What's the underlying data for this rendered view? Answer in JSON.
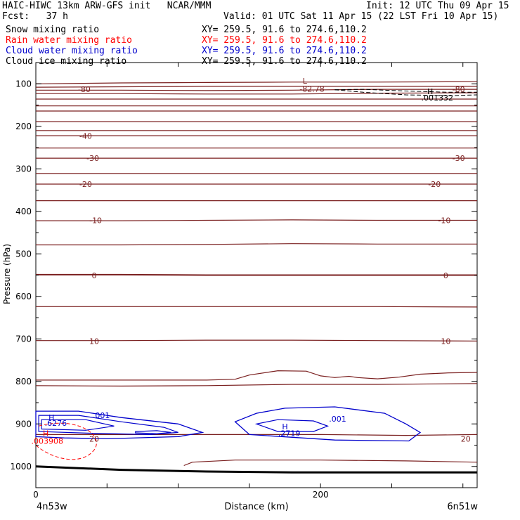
{
  "header": {
    "line1_left": "HAIC-HIWC 13km ARW-GFS init   NCAR/MMM",
    "line1_right": "Init: 12 UTC Thu 09 Apr 15",
    "fcst": "Fcst:   37 h",
    "valid": "Valid: 01 UTC Sat 11 Apr 15 (22 LST Fri 10 Apr 15)"
  },
  "fields": [
    {
      "name": "Snow mixing ratio",
      "xy": "XY= 259.5, 91.6 to 274.6,110.2",
      "color": "#000000"
    },
    {
      "name": "Rain water mixing ratio",
      "xy": "XY= 259.5, 91.6 to 274.6,110.2",
      "color": "#ff0000"
    },
    {
      "name": "Cloud water mixing ratio",
      "xy": "XY= 259.5, 91.6 to 274.6,110.2",
      "color": "#0000cc"
    },
    {
      "name": "Cloud ice mixing ratio",
      "xy": "XY= 259.5, 91.6 to 274.6,110.2",
      "color": "#000000"
    }
  ],
  "colors": {
    "temperature": "#7a1f1f",
    "cloud_water": "#0000cc",
    "rain_water": "#ff0000",
    "axes": "#000000"
  },
  "chart_data": {
    "type": "line",
    "ylabel": "Pressure (hPa)",
    "xlabel": "Distance (km)",
    "x_ticks": [
      "0",
      "200"
    ],
    "y_ticks": [
      "100",
      "200",
      "300",
      "400",
      "500",
      "600",
      "700",
      "800",
      "900",
      "1000"
    ],
    "endpoint_left": "4n53w",
    "endpoint_right": "6n51w",
    "xlim": [
      0,
      310
    ],
    "ylim": [
      50,
      1050
    ],
    "temperature_isotherms": [
      {
        "y": [
          100,
          98,
          97,
          96,
          96,
          95
        ],
        "label": null
      },
      {
        "y": [
          108,
          107,
          106,
          106,
          106,
          106
        ],
        "label": null
      },
      {
        "y": [
          115,
          115,
          116,
          115,
          113,
          113
        ],
        "label": "-80"
      },
      {
        "y": [
          123,
          123,
          124,
          124,
          122,
          121
        ],
        "label": null
      },
      {
        "y": [
          136,
          136,
          136,
          136,
          136,
          136
        ],
        "label": null
      },
      {
        "y": [
          152,
          152,
          152,
          152,
          152,
          152
        ],
        "label": null
      },
      {
        "y": [
          164,
          164,
          164,
          164,
          164,
          164
        ],
        "label": null
      },
      {
        "y": [
          189,
          189,
          189,
          189,
          189,
          189
        ],
        "label": null
      },
      {
        "y": [
          210,
          210,
          210,
          210,
          210,
          210
        ],
        "label": null
      },
      {
        "y": [
          222,
          222,
          222,
          222,
          222,
          222
        ],
        "label": "-40"
      },
      {
        "y": [
          251,
          251,
          251,
          251,
          251,
          251
        ],
        "label": null
      },
      {
        "y": [
          275,
          275,
          275,
          275,
          275,
          275
        ],
        "label": "-30"
      },
      {
        "y": [
          311,
          311,
          311,
          311,
          311,
          311
        ],
        "label": null
      },
      {
        "y": [
          336,
          336,
          336,
          336,
          336,
          336
        ],
        "label": "-20"
      },
      {
        "y": [
          375,
          375,
          375,
          375,
          375,
          375
        ],
        "label": null
      },
      {
        "y": [
          422,
          422,
          421,
          420,
          421,
          421
        ],
        "label": "-10"
      },
      {
        "y": [
          479,
          479,
          478,
          476,
          477,
          477
        ],
        "label": null
      },
      {
        "y": [
          549,
          549,
          550,
          550,
          550,
          550
        ],
        "label": "0"
      },
      {
        "y": [
          624,
          624,
          624,
          624,
          624,
          625
        ],
        "label": null
      },
      {
        "y": [
          704,
          704,
          703,
          703,
          704,
          705
        ],
        "label": "10"
      },
      {
        "y": [
          810,
          811,
          810,
          807,
          807,
          805
        ],
        "label": null
      }
    ],
    "contour_labels": [
      {
        "text": "-80",
        "x": 34,
        "y": 113,
        "color": "temperature"
      },
      {
        "text": "-80",
        "x": 297,
        "y": 113,
        "color": "temperature"
      },
      {
        "text": "-82.78",
        "x": 194,
        "y": 112,
        "color": "temperature"
      },
      {
        "text": "L",
        "x": 189,
        "y": 93,
        "color": "temperature"
      },
      {
        "text": "-40",
        "x": 35,
        "y": 223,
        "color": "temperature"
      },
      {
        "text": "-30",
        "x": 40,
        "y": 275,
        "color": "temperature"
      },
      {
        "text": "-30",
        "x": 297,
        "y": 275,
        "color": "temperature"
      },
      {
        "text": "-20",
        "x": 35,
        "y": 336,
        "color": "temperature"
      },
      {
        "text": "-20",
        "x": 280,
        "y": 336,
        "color": "temperature"
      },
      {
        "text": "-10",
        "x": 42,
        "y": 421,
        "color": "temperature"
      },
      {
        "text": "-10",
        "x": 287,
        "y": 421,
        "color": "temperature"
      },
      {
        "text": "0",
        "x": 41,
        "y": 551,
        "color": "temperature"
      },
      {
        "text": "0",
        "x": 288,
        "y": 551,
        "color": "temperature"
      },
      {
        "text": "10",
        "x": 41,
        "y": 705,
        "color": "temperature"
      },
      {
        "text": "10",
        "x": 288,
        "y": 705,
        "color": "temperature"
      },
      {
        "text": "20",
        "x": 41,
        "y": 935,
        "color": "temperature"
      },
      {
        "text": "20",
        "x": 302,
        "y": 935,
        "color": "temperature"
      },
      {
        "text": "H",
        "x": 277,
        "y": 118,
        "color": "axes"
      },
      {
        "text": ".001332",
        "x": 282,
        "y": 133,
        "color": "axes"
      },
      {
        "text": "H",
        "x": 11,
        "y": 885,
        "color": "cloud_water"
      },
      {
        "text": ".6276",
        "x": 14,
        "y": 898,
        "color": "cloud_water"
      },
      {
        "text": ".001",
        "x": 46,
        "y": 880,
        "color": "cloud_water"
      },
      {
        "text": ".001",
        "x": 212,
        "y": 888,
        "color": "cloud_water"
      },
      {
        "text": "H",
        "x": 175,
        "y": 906,
        "color": "cloud_water"
      },
      {
        "text": ".2719",
        "x": 178,
        "y": 922,
        "color": "cloud_water"
      },
      {
        "text": "H",
        "x": 7,
        "y": 922,
        "color": "rain_water"
      },
      {
        "text": ".003908",
        "x": 8,
        "y": 940,
        "color": "rain_water"
      }
    ]
  }
}
